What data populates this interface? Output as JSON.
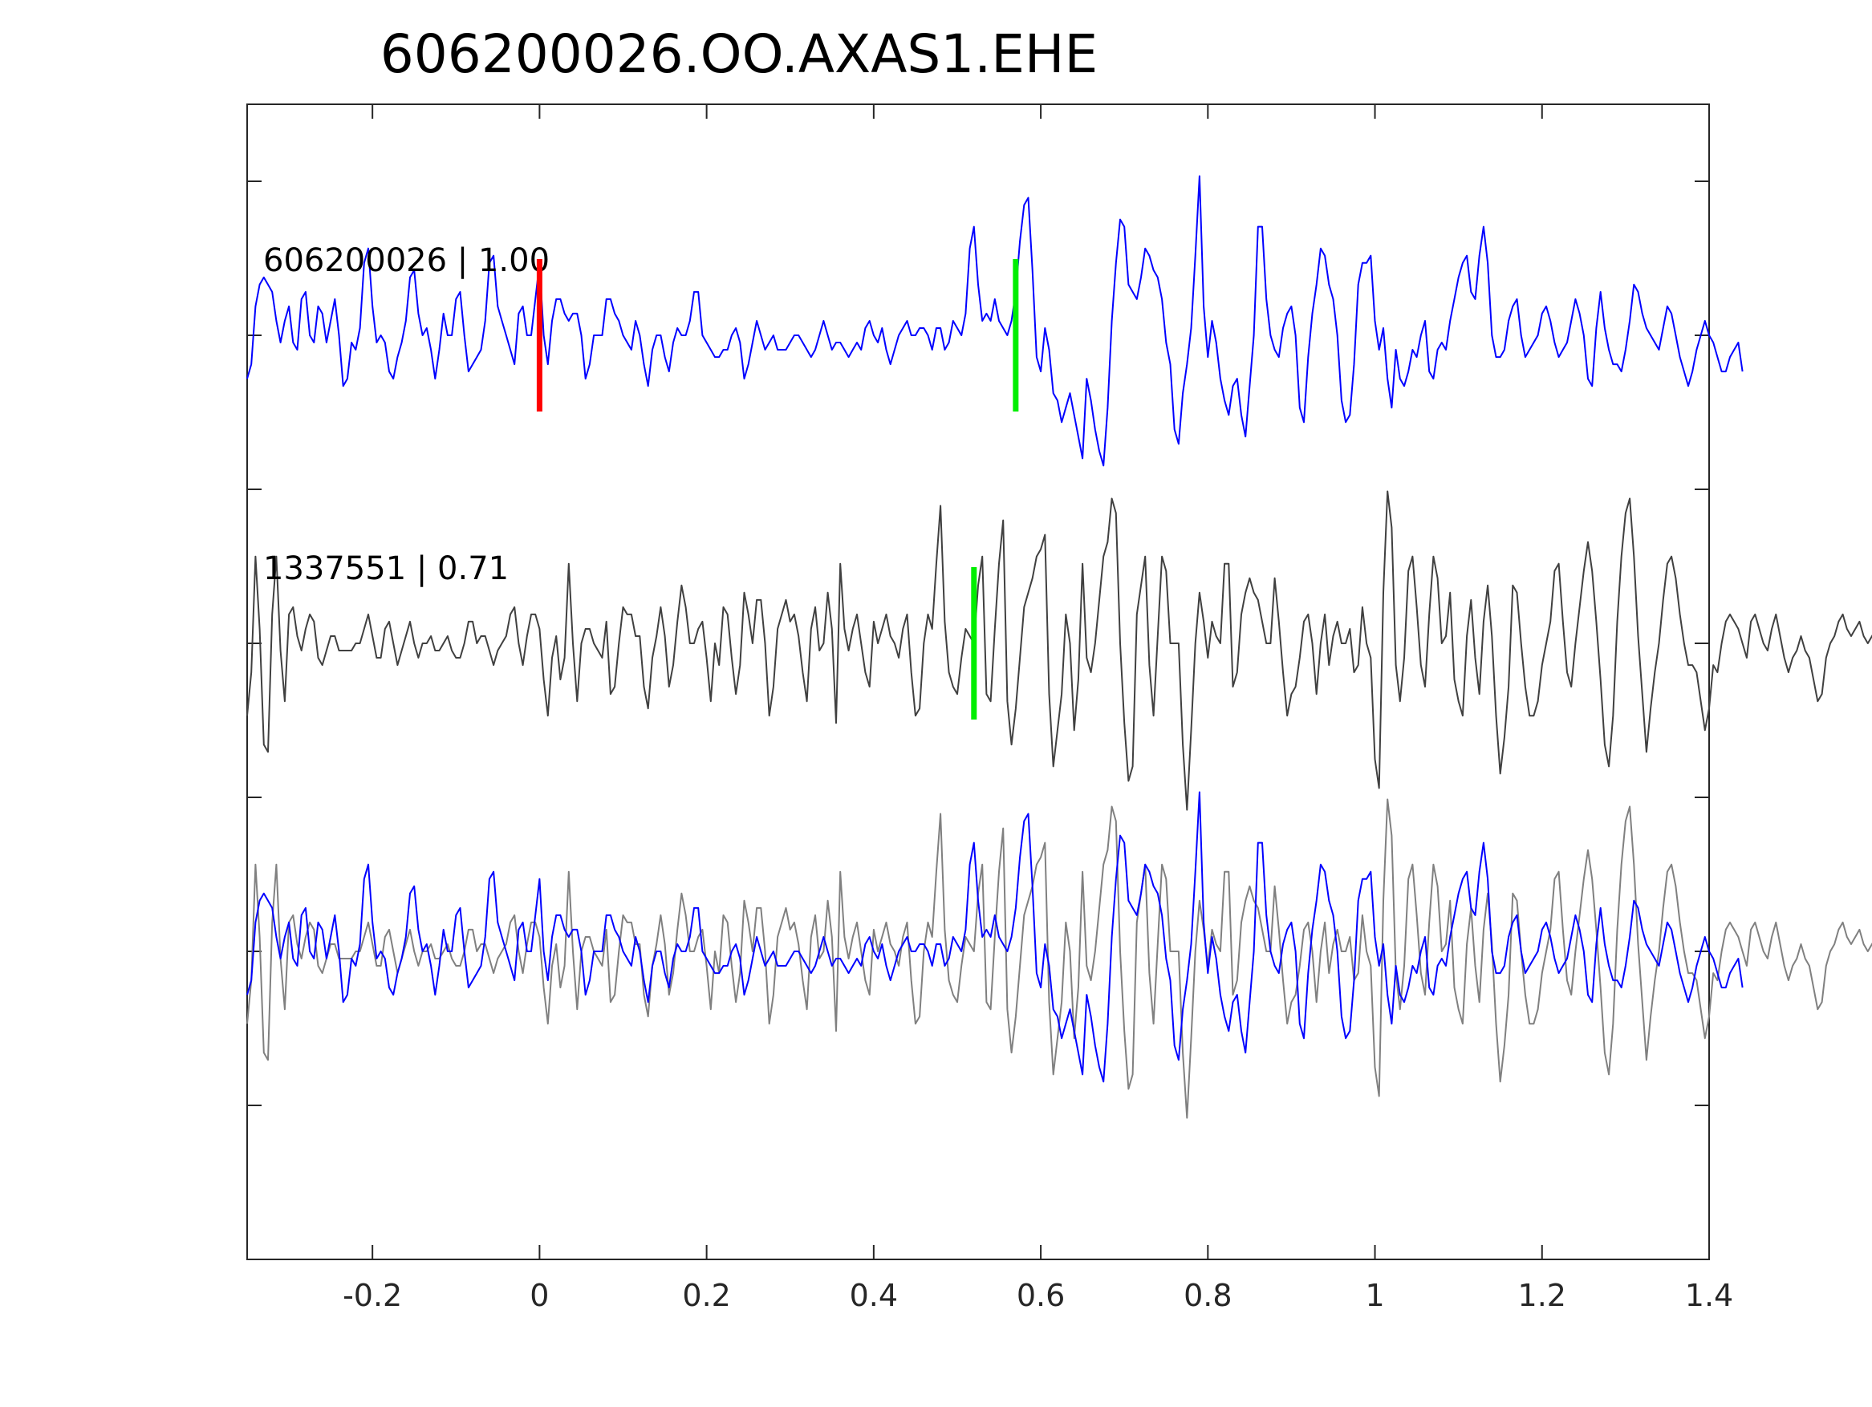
{
  "chart_data": {
    "type": "line",
    "title": "606200026.OO.AXAS1.EHE",
    "xlabel": "",
    "ylabel": "",
    "xlim": [
      -0.35,
      1.4
    ],
    "x_ticks": [
      -0.2,
      0,
      0.2,
      0.4,
      0.6,
      0.8,
      1,
      1.2,
      1.4
    ],
    "x_tick_labels": [
      "-0.2",
      "0",
      "0.2",
      "0.4",
      "0.6",
      "0.8",
      "1",
      "1.2",
      "1.4"
    ],
    "grid": false,
    "y_tick_count": 7,
    "traces": [
      {
        "label": "606200026 | 1.00",
        "color": "#0000ff",
        "baseline_row": 1,
        "picks": [
          {
            "x": 0.0,
            "color": "#ff0000"
          },
          {
            "x": 0.57,
            "color": "#00ee00"
          }
        ]
      },
      {
        "label": "1337551 | 0.71",
        "color": "#404040",
        "baseline_row": 3,
        "picks": [
          {
            "x": 0.52,
            "color": "#00ee00"
          }
        ]
      }
    ],
    "overlay": {
      "baseline_row": 5,
      "series": [
        {
          "source_trace": 1,
          "color": "#808080"
        },
        {
          "source_trace": 0,
          "color": "#0000ff"
        }
      ]
    },
    "series_x": {
      "start": -0.35,
      "step": 0.005
    },
    "series": [
      {
        "values": [
          -0.3,
          -0.2,
          0.2,
          0.35,
          0.4,
          0.35,
          0.3,
          0.1,
          -0.05,
          0.1,
          0.2,
          -0.05,
          -0.1,
          0.25,
          0.3,
          0.0,
          -0.05,
          0.2,
          0.15,
          -0.05,
          0.1,
          0.25,
          0.0,
          -0.35,
          -0.3,
          -0.05,
          -0.1,
          0.05,
          0.5,
          0.6,
          0.2,
          -0.05,
          0.0,
          -0.05,
          -0.25,
          -0.3,
          -0.15,
          -0.05,
          0.1,
          0.4,
          0.45,
          0.15,
          0.0,
          0.05,
          -0.1,
          -0.3,
          -0.1,
          0.15,
          0.0,
          0.0,
          0.25,
          0.3,
          0.0,
          -0.25,
          -0.2,
          -0.15,
          -0.1,
          0.1,
          0.5,
          0.55,
          0.2,
          0.1,
          0.0,
          -0.1,
          -0.2,
          0.15,
          0.2,
          0.0,
          0.0,
          0.25,
          0.5,
          0.0,
          -0.2,
          0.1,
          0.25,
          0.25,
          0.15,
          0.1,
          0.15,
          0.15,
          0.0,
          -0.3,
          -0.2,
          0.0,
          0.0,
          0.0,
          0.25,
          0.25,
          0.15,
          0.1,
          0.0,
          -0.05,
          -0.1,
          0.1,
          0.0,
          -0.2,
          -0.35,
          -0.1,
          0.0,
          0.0,
          -0.15,
          -0.25,
          -0.05,
          0.05,
          0.0,
          0.0,
          0.1,
          0.3,
          0.3,
          0.0,
          -0.05,
          -0.1,
          -0.15,
          -0.15,
          -0.1,
          -0.1,
          0.0,
          0.05,
          -0.05,
          -0.3,
          -0.2,
          -0.05,
          0.1,
          0.0,
          -0.1,
          -0.05,
          0.0,
          -0.1,
          -0.1,
          -0.1,
          -0.05,
          0.0,
          0.0,
          -0.05,
          -0.1,
          -0.15,
          -0.1,
          0.0,
          0.1,
          0.0,
          -0.1,
          -0.05,
          -0.05,
          -0.1,
          -0.15,
          -0.1,
          -0.05,
          -0.1,
          0.05,
          0.1,
          0.0,
          -0.05,
          0.05,
          -0.1,
          -0.2,
          -0.1,
          0.0,
          0.05,
          0.1,
          0.0,
          0.0,
          0.05,
          0.05,
          0.0,
          -0.1,
          0.05,
          0.05,
          -0.1,
          -0.05,
          0.1,
          0.05,
          0.0,
          0.15,
          0.6,
          0.75,
          0.35,
          0.1,
          0.15,
          0.1,
          0.25,
          0.1,
          0.05,
          0.0,
          0.1,
          0.3,
          0.65,
          0.9,
          0.95,
          0.45,
          -0.15,
          -0.25,
          0.05,
          -0.1,
          -0.4,
          -0.45,
          -0.6,
          -0.5,
          -0.4,
          -0.55,
          -0.7,
          -0.85,
          -0.3,
          -0.45,
          -0.65,
          -0.8,
          -0.9,
          -0.5,
          0.1,
          0.5,
          0.8,
          0.75,
          0.35,
          0.3,
          0.25,
          0.4,
          0.6,
          0.55,
          0.45,
          0.4,
          0.25,
          -0.05,
          -0.2,
          -0.65,
          -0.75,
          -0.4,
          -0.2,
          0.05,
          0.55,
          1.1,
          0.2,
          -0.15,
          0.1,
          -0.05,
          -0.3,
          -0.45,
          -0.55,
          -0.35,
          -0.3,
          -0.55,
          -0.7,
          -0.35,
          0.0,
          0.75,
          0.75,
          0.25,
          0.0,
          -0.1,
          -0.15,
          0.05,
          0.15,
          0.2,
          0.0,
          -0.5,
          -0.6,
          -0.15,
          0.15,
          0.35,
          0.6,
          0.55,
          0.35,
          0.25,
          0.0,
          -0.45,
          -0.6,
          -0.55,
          -0.2,
          0.35,
          0.5,
          0.5,
          0.55,
          0.1,
          -0.1,
          0.05,
          -0.3,
          -0.5,
          -0.1,
          -0.3,
          -0.35,
          -0.25,
          -0.1,
          -0.15,
          0.0,
          0.1,
          -0.25,
          -0.3,
          -0.1,
          -0.05,
          -0.1,
          0.1,
          0.25,
          0.4,
          0.5,
          0.55,
          0.3,
          0.25,
          0.55,
          0.75,
          0.5,
          0.0,
          -0.15,
          -0.15,
          -0.1,
          0.1,
          0.2,
          0.25,
          0.0,
          -0.15,
          -0.1,
          -0.05,
          0.0,
          0.15,
          0.2,
          0.1,
          -0.05,
          -0.15,
          -0.1,
          -0.05,
          0.1,
          0.25,
          0.15,
          0.0,
          -0.3,
          -0.35,
          0.05,
          0.3,
          0.05,
          -0.1,
          -0.2,
          -0.2,
          -0.25,
          -0.1,
          0.1,
          0.35,
          0.3,
          0.15,
          0.05,
          0.0,
          -0.05,
          -0.1,
          0.05,
          0.2,
          0.15,
          0.0,
          -0.15,
          -0.25,
          -0.35,
          -0.25,
          -0.1,
          0.0,
          0.1,
          0.0,
          -0.05,
          -0.15,
          -0.25,
          -0.25,
          -0.15,
          -0.1,
          -0.05,
          -0.25
        ]
      },
      {
        "values": [
          -0.5,
          -0.2,
          0.6,
          0.1,
          -0.7,
          -0.75,
          0.2,
          0.6,
          -0.05,
          -0.4,
          0.2,
          0.25,
          0.05,
          -0.05,
          0.1,
          0.2,
          0.15,
          -0.1,
          -0.15,
          -0.05,
          0.05,
          0.05,
          -0.05,
          -0.05,
          -0.05,
          -0.05,
          0.0,
          0.0,
          0.1,
          0.2,
          0.05,
          -0.1,
          -0.1,
          0.1,
          0.15,
          0.0,
          -0.15,
          -0.05,
          0.05,
          0.15,
          0.0,
          -0.1,
          0.0,
          0.0,
          0.05,
          -0.05,
          -0.05,
          0.0,
          0.05,
          -0.05,
          -0.1,
          -0.1,
          0.0,
          0.15,
          0.15,
          0.0,
          0.05,
          0.05,
          -0.05,
          -0.15,
          -0.05,
          0.0,
          0.05,
          0.2,
          0.25,
          0.0,
          -0.15,
          0.05,
          0.2,
          0.2,
          0.1,
          -0.25,
          -0.5,
          -0.1,
          0.05,
          -0.25,
          -0.1,
          0.55,
          0.0,
          -0.4,
          0.0,
          0.1,
          0.1,
          0.0,
          -0.05,
          -0.1,
          0.15,
          -0.35,
          -0.3,
          0.0,
          0.25,
          0.2,
          0.2,
          0.05,
          0.05,
          -0.3,
          -0.45,
          -0.1,
          0.05,
          0.25,
          0.05,
          -0.3,
          -0.15,
          0.15,
          0.4,
          0.25,
          0.0,
          0.0,
          0.1,
          0.15,
          -0.1,
          -0.4,
          0.0,
          -0.15,
          0.25,
          0.2,
          -0.1,
          -0.35,
          -0.15,
          0.35,
          0.2,
          0.0,
          0.3,
          0.3,
          0.0,
          -0.5,
          -0.3,
          0.1,
          0.2,
          0.3,
          0.15,
          0.2,
          0.05,
          -0.2,
          -0.4,
          0.1,
          0.25,
          -0.05,
          0.0,
          0.35,
          0.1,
          -0.55,
          0.55,
          0.1,
          -0.05,
          0.1,
          0.2,
          0.0,
          -0.2,
          -0.3,
          0.15,
          0.0,
          0.1,
          0.2,
          0.05,
          0.0,
          -0.1,
          0.1,
          0.2,
          -0.2,
          -0.5,
          -0.45,
          0.0,
          0.2,
          0.1,
          0.55,
          0.95,
          0.15,
          -0.2,
          -0.3,
          -0.35,
          -0.1,
          0.1,
          0.05,
          0.0,
          0.4,
          0.6,
          -0.35,
          -0.4,
          0.1,
          0.55,
          0.85,
          -0.4,
          -0.7,
          -0.45,
          -0.1,
          0.25,
          0.35,
          0.45,
          0.6,
          0.65,
          0.75,
          -0.35,
          -0.85,
          -0.6,
          -0.35,
          0.2,
          0.0,
          -0.6,
          -0.25,
          0.55,
          -0.1,
          -0.2,
          0.0,
          0.3,
          0.6,
          0.7,
          1.0,
          0.9,
          0.0,
          -0.55,
          -0.95,
          -0.85,
          0.2,
          0.4,
          0.6,
          -0.15,
          -0.5,
          0.05,
          0.6,
          0.5,
          0.0,
          0.0,
          0.0,
          -0.7,
          -1.15,
          -0.6,
          0.0,
          0.35,
          0.15,
          -0.1,
          0.15,
          0.05,
          0.0,
          0.55,
          0.55,
          -0.3,
          -0.2,
          0.2,
          0.35,
          0.45,
          0.35,
          0.3,
          0.15,
          0.0,
          0.0,
          0.45,
          0.15,
          -0.2,
          -0.5,
          -0.35,
          -0.3,
          -0.1,
          0.15,
          0.2,
          0.0,
          -0.35,
          0.0,
          0.2,
          -0.15,
          0.05,
          0.15,
          0.0,
          0.0,
          0.1,
          -0.2,
          -0.15,
          0.25,
          0.0,
          -0.1,
          -0.8,
          -1.0,
          0.35,
          1.05,
          0.8,
          -0.15,
          -0.4,
          -0.1,
          0.5,
          0.6,
          0.25,
          -0.15,
          -0.3,
          0.2,
          0.6,
          0.45,
          0.0,
          0.05,
          0.35,
          -0.25,
          -0.4,
          -0.5,
          0.05,
          0.3,
          -0.1,
          -0.35,
          0.15,
          0.4,
          0.05,
          -0.5,
          -0.9,
          -0.65,
          -0.3,
          0.4,
          0.35,
          0.0,
          -0.3,
          -0.5,
          -0.5,
          -0.4,
          -0.15,
          0.0,
          0.15,
          0.5,
          0.55,
          0.15,
          -0.2,
          -0.3,
          0.0,
          0.25,
          0.5,
          0.7,
          0.5,
          0.15,
          -0.25,
          -0.7,
          -0.85,
          -0.5,
          0.15,
          0.6,
          0.9,
          1.0,
          0.6,
          0.05,
          -0.35,
          -0.75,
          -0.45,
          -0.2,
          0.0,
          0.3,
          0.55,
          0.6,
          0.45,
          0.2,
          0.0,
          -0.15,
          -0.15,
          -0.2,
          -0.4,
          -0.6,
          -0.45,
          -0.15,
          -0.2,
          0.0,
          0.15,
          0.2,
          0.15,
          0.1,
          0.0,
          -0.1,
          0.15,
          0.2,
          0.1,
          0.0,
          -0.05,
          0.1,
          0.2,
          0.05,
          -0.1,
          -0.2,
          -0.1,
          -0.05,
          0.05,
          -0.05,
          -0.1,
          -0.25,
          -0.4,
          -0.35,
          -0.1,
          0.0,
          0.05,
          0.15,
          0.2,
          0.1,
          0.05,
          0.1,
          0.15,
          0.05,
          0.0,
          0.05,
          0.1,
          0.15,
          0.05,
          0.0,
          0.05,
          -0.05,
          -0.2,
          -0.3,
          -0.05,
          0.15,
          0.3
        ]
      }
    ]
  }
}
